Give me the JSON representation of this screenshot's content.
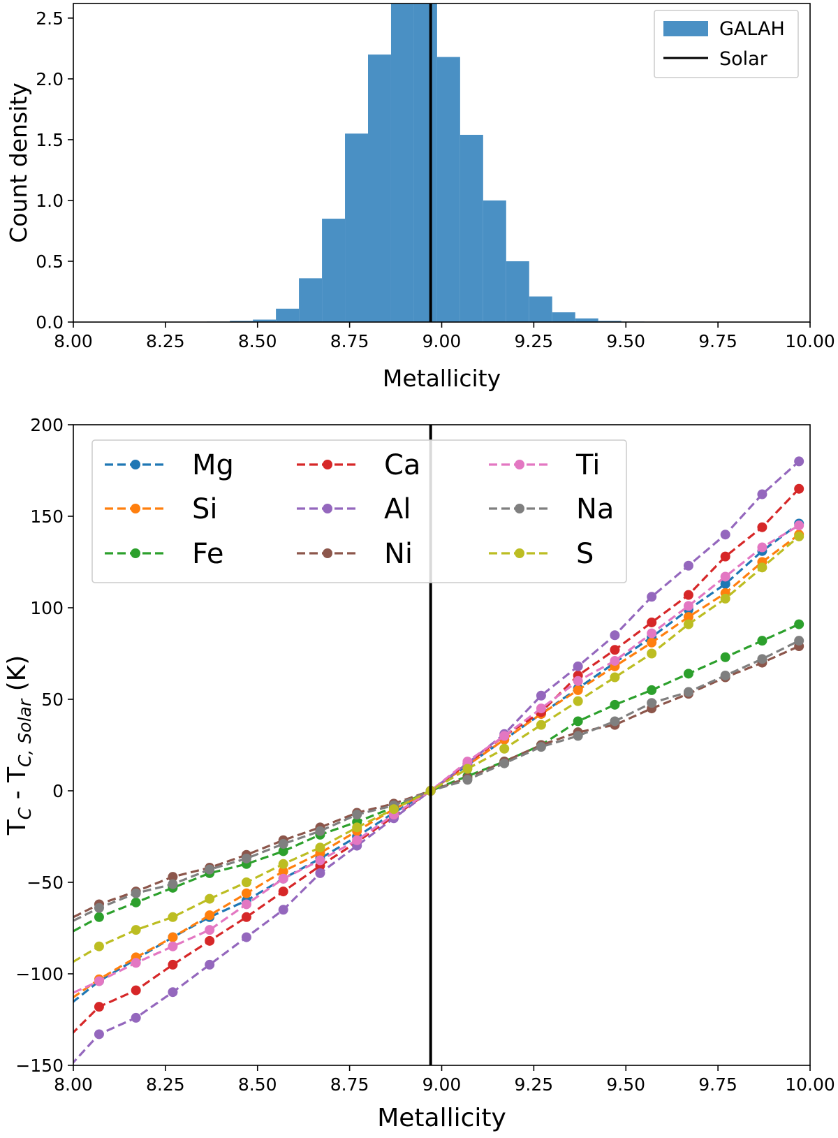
{
  "chart_data": [
    {
      "type": "bar",
      "subtype": "histogram",
      "xlabel": "Metallicity",
      "ylabel": "Count density",
      "xlim": [
        8.0,
        10.0
      ],
      "ylim": [
        0.0,
        2.62
      ],
      "xticks": [
        "8.00",
        "8.25",
        "8.50",
        "8.75",
        "9.00",
        "9.25",
        "9.50",
        "9.75",
        "10.00"
      ],
      "xtick_values": [
        8.0,
        8.25,
        8.5,
        8.75,
        9.0,
        9.25,
        9.5,
        9.75,
        10.0
      ],
      "yticks": [
        "0.0",
        "0.5",
        "1.0",
        "1.5",
        "2.0",
        "2.5"
      ],
      "ytick_values": [
        0.0,
        0.5,
        1.0,
        1.5,
        2.0,
        2.5
      ],
      "bin_width": 0.0625,
      "bins": [
        {
          "x0": 8.3625,
          "height": 0.004
        },
        {
          "x0": 8.425,
          "height": 0.01
        },
        {
          "x0": 8.4875,
          "height": 0.02
        },
        {
          "x0": 8.55,
          "height": 0.11
        },
        {
          "x0": 8.6125,
          "height": 0.36
        },
        {
          "x0": 8.675,
          "height": 0.85
        },
        {
          "x0": 8.7375,
          "height": 1.55
        },
        {
          "x0": 8.8,
          "height": 2.2
        },
        {
          "x0": 8.8625,
          "height": 2.62
        },
        {
          "x0": 8.925,
          "height": 2.62
        },
        {
          "x0": 8.9875,
          "height": 2.18
        },
        {
          "x0": 9.05,
          "height": 1.54
        },
        {
          "x0": 9.1125,
          "height": 1.0
        },
        {
          "x0": 9.175,
          "height": 0.5
        },
        {
          "x0": 9.2375,
          "height": 0.21
        },
        {
          "x0": 9.3,
          "height": 0.08
        },
        {
          "x0": 9.3625,
          "height": 0.03
        },
        {
          "x0": 9.425,
          "height": 0.01
        },
        {
          "x0": 9.4875,
          "height": 0.004
        }
      ],
      "bar_color": "#4a90c4",
      "solar_line_x": 8.97,
      "legend": {
        "placement": "top-right",
        "entries": [
          "GALAH",
          "Solar"
        ]
      }
    },
    {
      "type": "line",
      "xlabel": "Metallicity",
      "ylabel_base": "T",
      "ylabel_sub1": "C",
      "ylabel_mid": " - T",
      "ylabel_sub2": "C, Solar",
      "ylabel_tail": " (K)",
      "xlim": [
        8.0,
        10.0
      ],
      "ylim": [
        -150,
        200
      ],
      "xticks": [
        "8.00",
        "8.25",
        "8.50",
        "8.75",
        "9.00",
        "9.25",
        "9.50",
        "9.75",
        "10.00"
      ],
      "xtick_values": [
        8.0,
        8.25,
        8.5,
        8.75,
        9.0,
        9.25,
        9.5,
        9.75,
        10.0
      ],
      "yticks": [
        "−150",
        "−100",
        "−50",
        "0",
        "50",
        "100",
        "150",
        "200"
      ],
      "ytick_values": [
        -150,
        -100,
        -50,
        0,
        50,
        100,
        150,
        200
      ],
      "solar_line_x": 8.97,
      "x": [
        7.97,
        8.07,
        8.17,
        8.27,
        8.37,
        8.47,
        8.57,
        8.67,
        8.77,
        8.87,
        8.97,
        9.07,
        9.17,
        9.27,
        9.37,
        9.47,
        9.57,
        9.67,
        9.77,
        9.87,
        9.97
      ],
      "legend": {
        "placement": "top-left",
        "columns": 3
      },
      "series": [
        {
          "name": "Mg",
          "color": "#1f77b4",
          "values": [
            -120,
            -104,
            -92,
            -80,
            -69,
            -60,
            -48,
            -37,
            -25,
            -12,
            0,
            14,
            28,
            42,
            56,
            70,
            84,
            99,
            113,
            131,
            146
          ]
        },
        {
          "name": "Si",
          "color": "#ff7f0e",
          "values": [
            -117,
            -103,
            -91,
            -80,
            -68,
            -56,
            -44,
            -34,
            -22,
            -10,
            0,
            14,
            28,
            42,
            55,
            68,
            81,
            95,
            108,
            125,
            140
          ]
        },
        {
          "name": "Fe",
          "color": "#2ca02c",
          "values": [
            -80,
            -69,
            -61,
            -53,
            -45,
            -40,
            -33,
            -24,
            -17,
            -9,
            0,
            8,
            16,
            25,
            38,
            47,
            55,
            64,
            73,
            82,
            91
          ]
        },
        {
          "name": "Ca",
          "color": "#d62728",
          "values": [
            -138,
            -118,
            -109,
            -95,
            -82,
            -69,
            -55,
            -41,
            -28,
            -14,
            0,
            15,
            30,
            43,
            63,
            77,
            92,
            107,
            128,
            144,
            165
          ]
        },
        {
          "name": "Al",
          "color": "#9467bd",
          "values": [
            -155,
            -133,
            -124,
            -110,
            -95,
            -80,
            -65,
            -45,
            -30,
            -15,
            0,
            15,
            31,
            52,
            68,
            85,
            106,
            123,
            140,
            162,
            180
          ]
        },
        {
          "name": "Ni",
          "color": "#8c564b",
          "values": [
            -72,
            -62,
            -55,
            -47,
            -42,
            -35,
            -27,
            -20,
            -12,
            -7,
            0,
            7,
            16,
            25,
            32,
            36,
            45,
            53,
            62,
            70,
            79
          ]
        },
        {
          "name": "Ti",
          "color": "#e377c2",
          "values": [
            -113,
            -104,
            -94,
            -85,
            -76,
            -62,
            -48,
            -38,
            -27,
            -13,
            0,
            16,
            30,
            45,
            60,
            71,
            86,
            101,
            117,
            133,
            145
          ]
        },
        {
          "name": "Na",
          "color": "#7f7f7f",
          "values": [
            -74,
            -64,
            -56,
            -51,
            -43,
            -37,
            -29,
            -22,
            -13,
            -8,
            0,
            6,
            15,
            24,
            30,
            38,
            48,
            54,
            63,
            72,
            82
          ]
        },
        {
          "name": "S",
          "color": "#bcbd22",
          "values": [
            -97,
            -85,
            -76,
            -69,
            -59,
            -50,
            -40,
            -31,
            -20,
            -10,
            0,
            12,
            23,
            36,
            49,
            62,
            75,
            91,
            105,
            122,
            139
          ]
        }
      ]
    }
  ]
}
